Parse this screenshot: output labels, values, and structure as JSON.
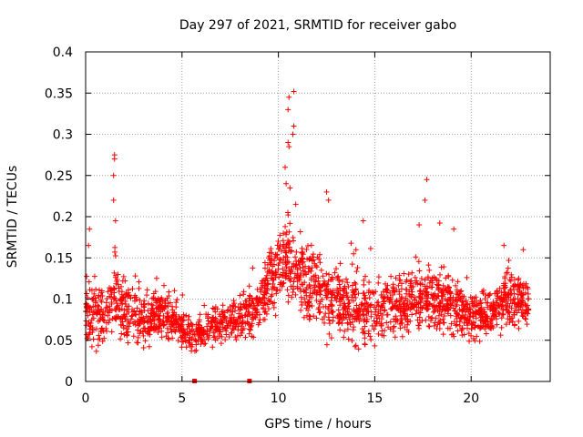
{
  "chart_data": {
    "type": "scatter",
    "title": "Day 297 of 2021, SRMTID for receiver gabo",
    "xlabel": "GPS time / hours",
    "ylabel": "SRMTID / TECUs",
    "xlim": [
      0,
      24.1
    ],
    "ylim": [
      0,
      0.4
    ],
    "x_ticks": [
      0,
      5,
      10,
      15,
      20
    ],
    "x_tick_labels": [
      "0",
      "5",
      "10",
      "15",
      "20"
    ],
    "y_ticks": [
      0,
      0.05,
      0.1,
      0.15,
      0.2,
      0.25,
      0.3,
      0.35,
      0.4
    ],
    "y_tick_labels": [
      "0",
      "0.05",
      "0.1",
      "0.15",
      "0.2",
      "0.25",
      "0.3",
      "0.35",
      "0.4"
    ],
    "grid": true,
    "marker": "+",
    "color": "#ff0000",
    "x_range_hours": [
      0,
      23
    ],
    "envelope": [
      {
        "t": 0.0,
        "mean": 0.085,
        "spread": 0.03
      },
      {
        "t": 0.5,
        "mean": 0.085,
        "spread": 0.035
      },
      {
        "t": 1.0,
        "mean": 0.075,
        "spread": 0.025
      },
      {
        "t": 1.5,
        "mean": 0.1,
        "spread": 0.04
      },
      {
        "t": 2.0,
        "mean": 0.085,
        "spread": 0.03
      },
      {
        "t": 3.0,
        "mean": 0.07,
        "spread": 0.025
      },
      {
        "t": 4.0,
        "mean": 0.085,
        "spread": 0.025
      },
      {
        "t": 5.0,
        "mean": 0.07,
        "spread": 0.02
      },
      {
        "t": 5.5,
        "mean": 0.055,
        "spread": 0.015
      },
      {
        "t": 6.5,
        "mean": 0.065,
        "spread": 0.02
      },
      {
        "t": 8.0,
        "mean": 0.075,
        "spread": 0.02
      },
      {
        "t": 9.0,
        "mean": 0.09,
        "spread": 0.025
      },
      {
        "t": 9.5,
        "mean": 0.12,
        "spread": 0.03
      },
      {
        "t": 10.5,
        "mean": 0.15,
        "spread": 0.045
      },
      {
        "t": 11.5,
        "mean": 0.12,
        "spread": 0.035
      },
      {
        "t": 12.5,
        "mean": 0.1,
        "spread": 0.035
      },
      {
        "t": 14.0,
        "mean": 0.085,
        "spread": 0.035
      },
      {
        "t": 15.0,
        "mean": 0.085,
        "spread": 0.03
      },
      {
        "t": 16.5,
        "mean": 0.09,
        "spread": 0.03
      },
      {
        "t": 17.5,
        "mean": 0.105,
        "spread": 0.03
      },
      {
        "t": 19.0,
        "mean": 0.095,
        "spread": 0.03
      },
      {
        "t": 20.0,
        "mean": 0.075,
        "spread": 0.02
      },
      {
        "t": 21.0,
        "mean": 0.08,
        "spread": 0.025
      },
      {
        "t": 22.0,
        "mean": 0.105,
        "spread": 0.03
      },
      {
        "t": 23.0,
        "mean": 0.095,
        "spread": 0.025
      }
    ],
    "spikes": [
      {
        "x": 1.5,
        "y": 0.275
      },
      {
        "x": 1.5,
        "y": 0.27
      },
      {
        "x": 1.45,
        "y": 0.25
      },
      {
        "x": 1.45,
        "y": 0.22
      },
      {
        "x": 1.55,
        "y": 0.195
      },
      {
        "x": 0.2,
        "y": 0.185
      },
      {
        "x": 0.15,
        "y": 0.165
      },
      {
        "x": 10.55,
        "y": 0.345
      },
      {
        "x": 10.8,
        "y": 0.352
      },
      {
        "x": 10.5,
        "y": 0.33
      },
      {
        "x": 10.8,
        "y": 0.31
      },
      {
        "x": 10.75,
        "y": 0.3
      },
      {
        "x": 10.5,
        "y": 0.29
      },
      {
        "x": 10.55,
        "y": 0.285
      },
      {
        "x": 10.35,
        "y": 0.26
      },
      {
        "x": 10.4,
        "y": 0.24
      },
      {
        "x": 10.6,
        "y": 0.235
      },
      {
        "x": 10.9,
        "y": 0.215
      },
      {
        "x": 12.5,
        "y": 0.23
      },
      {
        "x": 12.6,
        "y": 0.22
      },
      {
        "x": 17.7,
        "y": 0.245
      },
      {
        "x": 17.6,
        "y": 0.22
      },
      {
        "x": 17.3,
        "y": 0.19
      },
      {
        "x": 14.4,
        "y": 0.195
      },
      {
        "x": 19.1,
        "y": 0.185
      },
      {
        "x": 21.7,
        "y": 0.165
      },
      {
        "x": 22.7,
        "y": 0.16
      }
    ],
    "zero_markers": [
      {
        "x": 5.65,
        "y": 0.0
      },
      {
        "x": 8.5,
        "y": 0.0
      }
    ]
  }
}
